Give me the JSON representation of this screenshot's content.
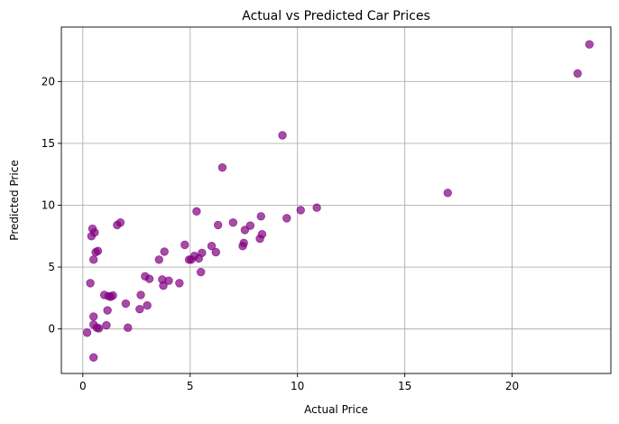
{
  "chart_data": {
    "type": "scatter",
    "title": "Actual vs Predicted Car Prices",
    "xlabel": "Actual Price",
    "ylabel": "Predicted Price",
    "xlim": [
      -1.0,
      24.6
    ],
    "ylim": [
      -3.6,
      24.4
    ],
    "xticks": [
      0,
      5,
      10,
      15,
      20
    ],
    "yticks": [
      0,
      5,
      10,
      15,
      20
    ],
    "grid": true,
    "marker_color": "#800080",
    "marker_alpha": 0.7,
    "points": [
      [
        0.2,
        -0.3
      ],
      [
        0.35,
        3.7
      ],
      [
        0.4,
        7.5
      ],
      [
        0.45,
        8.1
      ],
      [
        0.5,
        5.6
      ],
      [
        0.5,
        0.35
      ],
      [
        0.5,
        -2.3
      ],
      [
        0.5,
        1.0
      ],
      [
        0.55,
        7.8
      ],
      [
        0.6,
        6.2
      ],
      [
        0.65,
        0.1
      ],
      [
        0.7,
        6.3
      ],
      [
        0.75,
        0.05
      ],
      [
        1.0,
        2.75
      ],
      [
        1.1,
        0.3
      ],
      [
        1.15,
        1.5
      ],
      [
        1.2,
        2.65
      ],
      [
        1.3,
        2.6
      ],
      [
        1.4,
        2.7
      ],
      [
        1.6,
        8.4
      ],
      [
        1.75,
        8.6
      ],
      [
        2.0,
        2.05
      ],
      [
        2.1,
        0.1
      ],
      [
        2.65,
        1.6
      ],
      [
        2.7,
        2.75
      ],
      [
        2.9,
        4.25
      ],
      [
        3.0,
        1.9
      ],
      [
        3.1,
        4.05
      ],
      [
        3.55,
        5.6
      ],
      [
        3.7,
        4.0
      ],
      [
        3.75,
        3.5
      ],
      [
        3.8,
        6.25
      ],
      [
        4.0,
        3.9
      ],
      [
        4.5,
        3.7
      ],
      [
        4.75,
        6.8
      ],
      [
        4.95,
        5.6
      ],
      [
        5.05,
        5.6
      ],
      [
        5.2,
        5.9
      ],
      [
        5.3,
        9.5
      ],
      [
        5.4,
        5.7
      ],
      [
        5.5,
        4.6
      ],
      [
        5.55,
        6.15
      ],
      [
        6.0,
        6.7
      ],
      [
        6.2,
        6.2
      ],
      [
        6.3,
        8.4
      ],
      [
        6.5,
        13.05
      ],
      [
        7.0,
        8.6
      ],
      [
        7.45,
        6.7
      ],
      [
        7.5,
        6.95
      ],
      [
        7.55,
        8.0
      ],
      [
        7.8,
        8.35
      ],
      [
        8.25,
        7.3
      ],
      [
        8.3,
        9.1
      ],
      [
        8.35,
        7.65
      ],
      [
        9.3,
        15.65
      ],
      [
        9.5,
        8.95
      ],
      [
        10.15,
        9.6
      ],
      [
        10.9,
        9.8
      ],
      [
        17.0,
        11.0
      ],
      [
        23.05,
        20.65
      ],
      [
        23.6,
        23.0
      ]
    ]
  }
}
